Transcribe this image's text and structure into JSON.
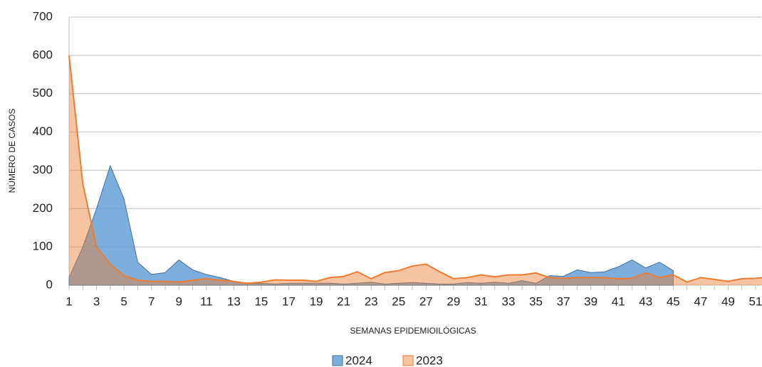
{
  "chart_data": {
    "type": "area",
    "x_label": "SEMANAS EPIDEMIOILÓGICAS",
    "y_label": "NÚMERO DE CASOS",
    "categories": [
      "1",
      null,
      "3",
      null,
      "5",
      null,
      "7",
      null,
      "9",
      null,
      "11",
      null,
      "13",
      null,
      "15",
      null,
      "17",
      null,
      "19",
      null,
      "21",
      null,
      "23",
      null,
      "25",
      null,
      "27",
      null,
      "29",
      null,
      "31",
      null,
      "33",
      null,
      "35",
      null,
      "37",
      null,
      "39",
      null,
      "41",
      null,
      "43",
      null,
      "45",
      null,
      "47",
      null,
      "49",
      null,
      "51",
      null
    ],
    "series": [
      {
        "name": "2024",
        "color": "#5b9bd5",
        "values": [
          20,
          100,
          200,
          312,
          225,
          60,
          28,
          33,
          66,
          40,
          28,
          20,
          10,
          5,
          5,
          3,
          5,
          5,
          5,
          5,
          3,
          5,
          8,
          3,
          5,
          7,
          5,
          3,
          3,
          7,
          5,
          8,
          5,
          12,
          5,
          25,
          23,
          40,
          33,
          35,
          48,
          66,
          45,
          60,
          38,
          null,
          null,
          null,
          null,
          null,
          null,
          null
        ]
      },
      {
        "name": "2023",
        "color": "#ed7d31",
        "values": [
          600,
          265,
          100,
          55,
          25,
          13,
          10,
          10,
          8,
          13,
          17,
          13,
          10,
          5,
          8,
          14,
          13,
          13,
          10,
          20,
          23,
          35,
          17,
          33,
          38,
          50,
          55,
          35,
          17,
          20,
          27,
          22,
          27,
          27,
          32,
          20,
          18,
          20,
          20,
          20,
          17,
          18,
          32,
          20,
          27,
          8,
          20,
          15,
          10,
          17,
          18,
          22
        ]
      }
    ],
    "ylim": [
      0,
      700
    ],
    "yticks": [
      0,
      100,
      200,
      300,
      400,
      500,
      600,
      700
    ],
    "grid": true,
    "legend": "bottom"
  }
}
